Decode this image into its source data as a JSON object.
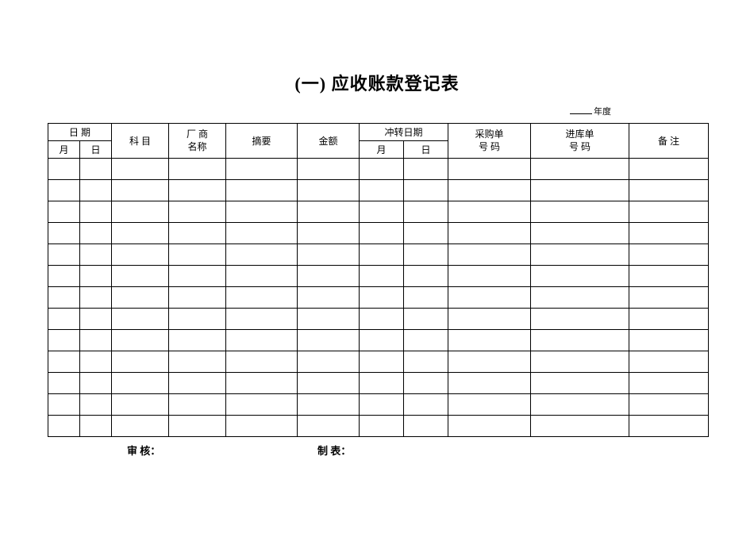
{
  "title": "(一) 应收账款登记表",
  "year_suffix": "年度",
  "headers": {
    "date_group": "日 期",
    "month": "月",
    "day": "日",
    "subject": "科 目",
    "vendor_line1": "厂 商",
    "vendor_line2": "名称",
    "summary": "摘要",
    "amount": "金额",
    "reverse_date_group": "冲转日期",
    "reverse_month": "月",
    "reverse_day": "日",
    "purchase_line1": "采购单",
    "purchase_line2": "号 码",
    "stockin_line1": "进库单",
    "stockin_line2": "号 码",
    "remark": "备 注"
  },
  "footer": {
    "audit": "审 核：",
    "prepare": "制 表："
  },
  "data_row_count": 13,
  "table_style": {
    "border_color": "#000000",
    "background_color": "#ffffff",
    "text_color": "#000000",
    "header_font_size": 12,
    "cell_font_size": 12,
    "column_widths": {
      "month": 40,
      "day": 40,
      "subject": 72,
      "vendor": 72,
      "summary": 90,
      "amount": 78,
      "rmonth": 56,
      "rday": 56,
      "purchase": 104,
      "stockin": 124,
      "remark": 100
    }
  }
}
